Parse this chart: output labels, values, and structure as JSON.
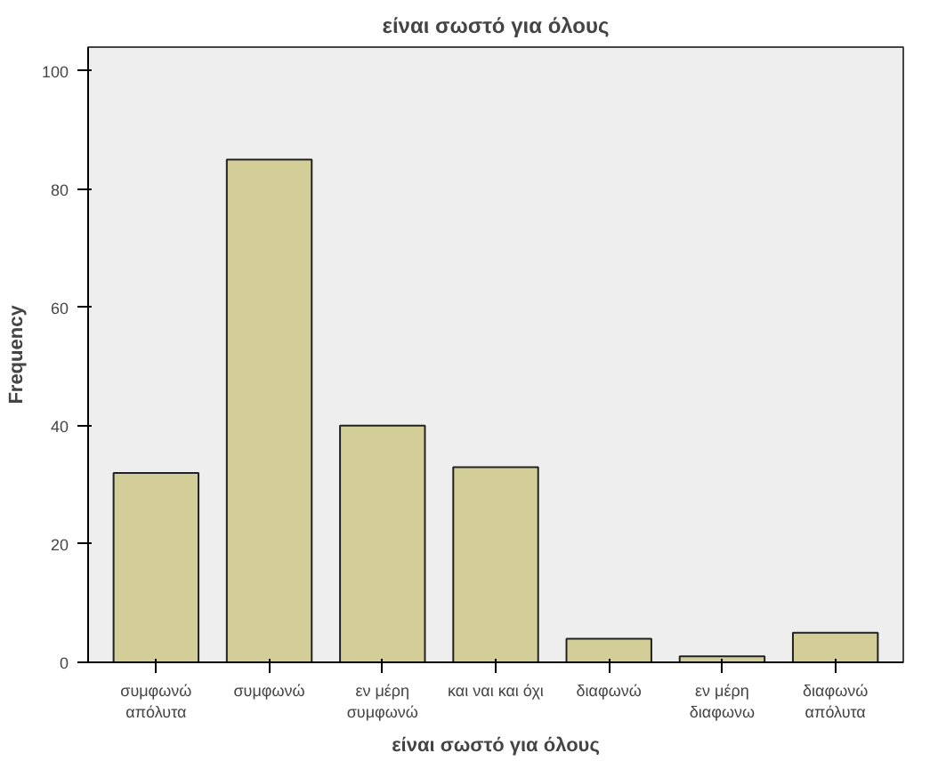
{
  "chart_data": {
    "type": "bar",
    "title": "είναι σωστό για όλους",
    "xlabel": "είναι σωστό για όλους",
    "ylabel": "Frequency",
    "categories": [
      "συμφωνώ\nαπόλυτα",
      "συμφωνώ",
      "εν μέρη\nσυμφωνώ",
      "και ναι και όχι",
      "διαφωνώ",
      "εν μέρη\nδιαφωνω",
      "διαφωνώ\nαπόλυτα"
    ],
    "values": [
      32,
      85,
      40,
      33,
      4,
      1,
      5
    ],
    "color": "#d3ce98",
    "ylim": [
      0,
      104
    ],
    "yticks": [
      0,
      20,
      40,
      60,
      80,
      100
    ],
    "grid": false
  }
}
